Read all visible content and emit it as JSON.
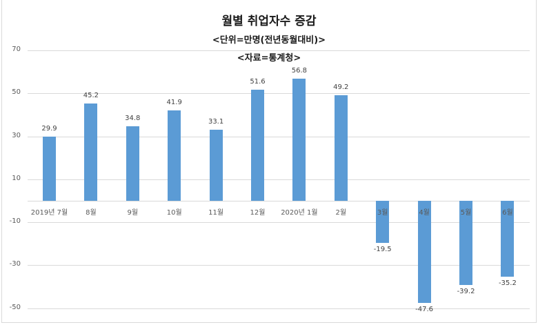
{
  "titles": {
    "main": "월별 취업자수 증감",
    "unit": "<단위=만명(전년동월대비)>",
    "source": "<자료=통계청>"
  },
  "colors": {
    "bar": "#5b9bd5",
    "grid": "#d9d9d9"
  },
  "y_ticks": [
    "70",
    "50",
    "30",
    "10",
    "-10",
    "-30",
    "-50"
  ],
  "chart_data": {
    "type": "bar",
    "title": "월별 취업자수 증감",
    "subtitle": "<단위=만명(전년동월대비)> <자료=통계청>",
    "xlabel": "",
    "ylabel": "",
    "categories": [
      "2019년 7월",
      "8월",
      "9월",
      "10월",
      "11월",
      "12월",
      "2020년 1월",
      "2월",
      "3월",
      "4월",
      "5월",
      "6월"
    ],
    "values": [
      29.9,
      45.2,
      34.8,
      41.9,
      33.1,
      51.6,
      56.8,
      49.2,
      -19.5,
      -47.6,
      -39.2,
      -35.2
    ],
    "value_labels": [
      "29.9",
      "45.2",
      "34.8",
      "41.9",
      "33.1",
      "51.6",
      "56.8",
      "49.2",
      "-19.5",
      "-47.6",
      "-39.2",
      "-35.2"
    ],
    "ylim": [
      -50,
      70
    ],
    "yticks": [
      70,
      50,
      30,
      10,
      -10,
      -30,
      -50
    ],
    "grid": true,
    "legend": null
  }
}
